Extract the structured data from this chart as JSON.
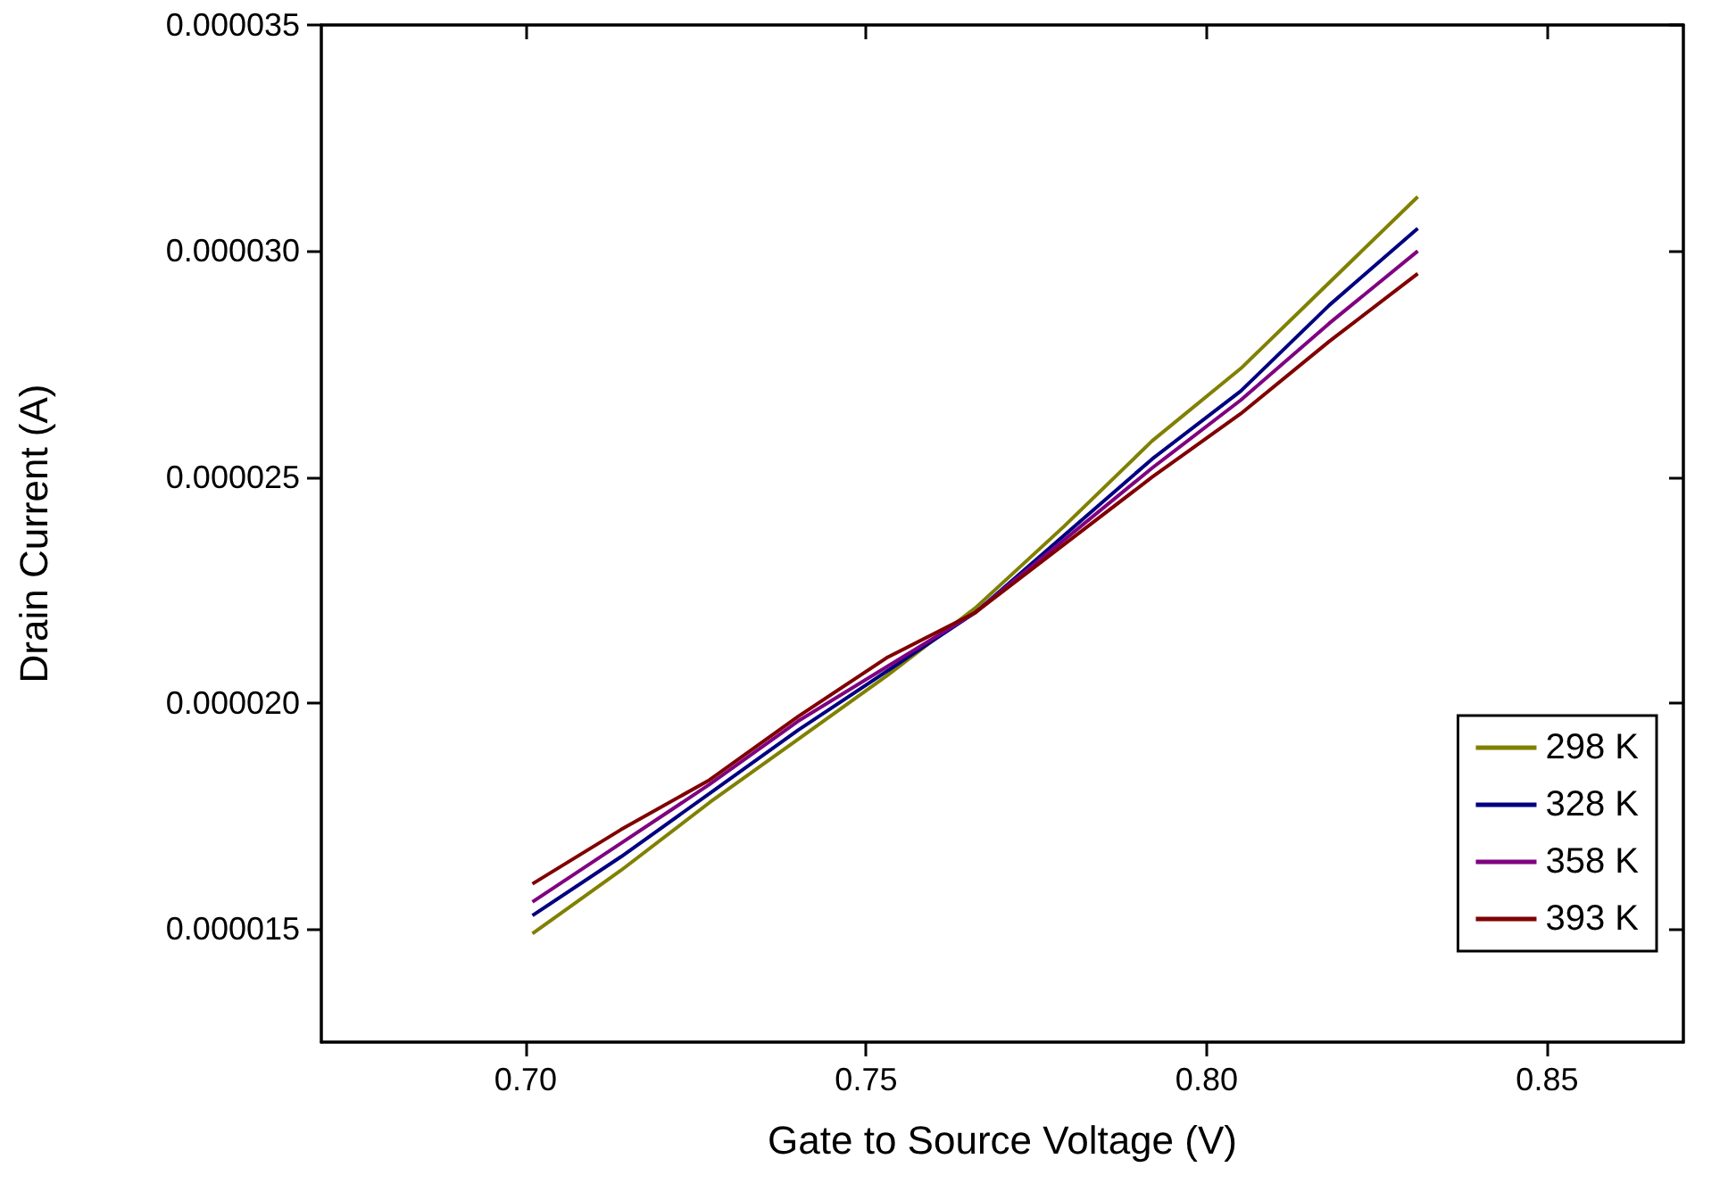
{
  "chart_data": {
    "type": "line",
    "xlabel": "Gate to Source Voltage (V)",
    "ylabel": "Drain Current (A)",
    "x": [
      0.701,
      0.714,
      0.727,
      0.74,
      0.753,
      0.766,
      0.779,
      0.792,
      0.805,
      0.818,
      0.831
    ],
    "series": [
      {
        "name": "298 K",
        "color": "#808000",
        "values": [
          1.49e-05,
          1.63e-05,
          1.78e-05,
          1.92e-05,
          2.06e-05,
          2.21e-05,
          2.39e-05,
          2.58e-05,
          2.74e-05,
          2.93e-05,
          3.12e-05
        ]
      },
      {
        "name": "328 K",
        "color": "#000080",
        "values": [
          1.53e-05,
          1.66e-05,
          1.8e-05,
          1.94e-05,
          2.07e-05,
          2.2e-05,
          2.37e-05,
          2.54e-05,
          2.69e-05,
          2.88e-05,
          3.05e-05
        ]
      },
      {
        "name": "358 K",
        "color": "#800080",
        "values": [
          1.56e-05,
          1.69e-05,
          1.82e-05,
          1.96e-05,
          2.08e-05,
          2.2e-05,
          2.36e-05,
          2.52e-05,
          2.67e-05,
          2.84e-05,
          3e-05
        ]
      },
      {
        "name": "393 K",
        "color": "#800000",
        "values": [
          1.6e-05,
          1.72e-05,
          1.83e-05,
          1.97e-05,
          2.1e-05,
          2.2e-05,
          2.35e-05,
          2.5e-05,
          2.64e-05,
          2.8e-05,
          2.95e-05
        ]
      }
    ],
    "xlim": [
      0.67,
      0.87
    ],
    "xticks": [
      {
        "value": 0.7,
        "label": "0.70"
      },
      {
        "value": 0.75,
        "label": "0.75"
      },
      {
        "value": 0.8,
        "label": "0.80"
      },
      {
        "value": 0.85,
        "label": "0.85"
      }
    ],
    "ylim": [
      1.25e-05,
      3.5e-05
    ],
    "yticks": [
      {
        "value": 1.5e-05,
        "label": "0.000015"
      },
      {
        "value": 2e-05,
        "label": "0.000020"
      },
      {
        "value": 2.5e-05,
        "label": "0.000025"
      },
      {
        "value": 3e-05,
        "label": "0.000030"
      },
      {
        "value": 3.5e-05,
        "label": "0.000035"
      }
    ],
    "grid": false,
    "legend": "bottom right",
    "marker": "none",
    "line_style": "solid"
  }
}
